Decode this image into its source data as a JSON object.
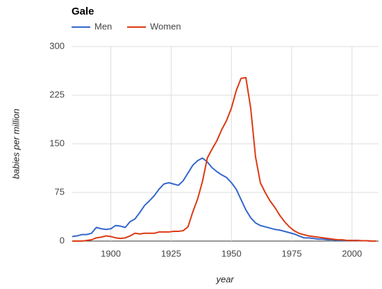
{
  "chart_data": {
    "type": "line",
    "title": "Gale",
    "xlabel": "year",
    "ylabel": "babies per million",
    "x": [
      1884,
      1886,
      1888,
      1890,
      1892,
      1894,
      1896,
      1898,
      1900,
      1902,
      1904,
      1906,
      1908,
      1910,
      1912,
      1914,
      1916,
      1918,
      1920,
      1922,
      1924,
      1926,
      1928,
      1930,
      1932,
      1934,
      1936,
      1938,
      1940,
      1942,
      1944,
      1946,
      1948,
      1950,
      1952,
      1954,
      1956,
      1958,
      1960,
      1962,
      1964,
      1966,
      1968,
      1970,
      1972,
      1974,
      1976,
      1978,
      1980,
      1982,
      1984,
      1986,
      1988,
      1990,
      1992,
      1994,
      1996,
      1998,
      2000,
      2002,
      2004,
      2006,
      2008,
      2010
    ],
    "series": [
      {
        "name": "Men",
        "color": "#3366cc",
        "values": [
          7,
          8,
          10,
          10,
          12,
          21,
          19,
          18,
          19,
          24,
          23,
          21,
          30,
          34,
          44,
          55,
          62,
          70,
          80,
          88,
          90,
          88,
          86,
          93,
          105,
          117,
          124,
          128,
          122,
          113,
          107,
          102,
          98,
          90,
          80,
          64,
          48,
          36,
          28,
          24,
          22,
          20,
          18,
          17,
          15,
          13,
          11,
          8,
          5,
          5,
          4,
          3,
          3,
          2,
          2,
          1,
          1,
          1,
          1,
          1,
          0.5,
          0.5,
          0,
          0
        ]
      },
      {
        "name": "Women",
        "color": "#dc3912",
        "values": [
          0,
          0,
          0,
          1,
          2,
          5,
          6,
          8,
          7,
          5,
          4,
          5,
          8,
          12,
          11,
          12,
          12,
          12,
          14,
          14,
          14,
          15,
          15,
          16,
          22,
          45,
          65,
          92,
          128,
          142,
          155,
          172,
          186,
          205,
          232,
          251,
          252,
          205,
          130,
          90,
          75,
          62,
          52,
          40,
          30,
          22,
          16,
          12,
          10,
          8,
          7,
          6,
          5,
          4,
          3,
          2,
          2,
          1,
          1,
          1,
          0.5,
          0.5,
          0,
          0
        ]
      }
    ],
    "xlim": [
      1884,
      2011
    ],
    "xticks": [
      1900,
      1925,
      1950,
      1975,
      2000
    ],
    "ylim": [
      0,
      300
    ],
    "yticks": [
      0,
      75,
      150,
      225,
      300
    ],
    "grid": true,
    "legend": "top-left"
  }
}
